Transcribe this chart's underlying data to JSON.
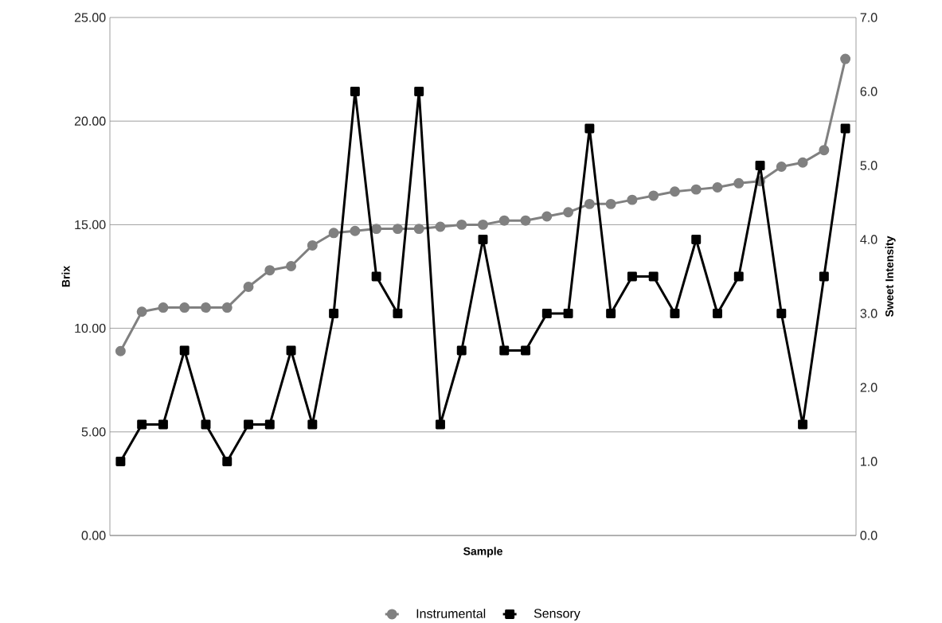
{
  "chart_data": {
    "type": "line",
    "xlabel": "Sample",
    "ylabel": "Brix",
    "y2label": "Sweet Intensity",
    "categories": [
      null,
      null,
      null,
      null,
      null,
      null,
      null,
      null,
      null,
      null,
      null,
      null,
      null,
      null,
      null,
      null,
      null,
      null,
      null,
      null,
      null,
      null,
      null,
      null,
      null,
      null,
      null,
      null,
      null,
      null,
      null,
      null,
      null,
      null,
      null
    ],
    "series": [
      {
        "name": "Instrumental",
        "color": "#808080",
        "marker": "circle",
        "values": [
          8.9,
          10.8,
          11.0,
          11.0,
          11.0,
          11.0,
          12.0,
          12.8,
          13.0,
          14.0,
          14.6,
          14.7,
          14.8,
          14.8,
          14.8,
          14.9,
          15.0,
          15.0,
          15.2,
          15.2,
          15.4,
          15.6,
          16.0,
          16.0,
          16.2,
          16.4,
          16.6,
          16.7,
          16.8,
          17.0,
          17.1,
          17.8,
          18.0,
          18.6,
          23.0
        ]
      },
      {
        "name": "Sensory",
        "color": "#000000",
        "marker": "square",
        "axis": "y2",
        "values": [
          1.0,
          1.5,
          1.5,
          2.5,
          1.5,
          1.0,
          1.5,
          1.5,
          2.5,
          1.5,
          3.0,
          6.0,
          3.5,
          3.0,
          6.0,
          1.5,
          2.5,
          4.0,
          2.5,
          2.5,
          3.0,
          3.0,
          5.5,
          3.0,
          3.5,
          3.5,
          3.0,
          4.0,
          3.0,
          3.5,
          5.0,
          3.0,
          1.5,
          3.5,
          5.5
        ]
      }
    ],
    "ylim": [
      0,
      25
    ],
    "yticks": [
      {
        "value": 0,
        "label": "0.00"
      },
      {
        "value": 5,
        "label": "5.00"
      },
      {
        "value": 10,
        "label": "10.00"
      },
      {
        "value": 15,
        "label": "15.00"
      },
      {
        "value": 20,
        "label": "20.00"
      },
      {
        "value": 25,
        "label": "25.00"
      }
    ],
    "y2lim": [
      0,
      7
    ],
    "y2ticks": [
      {
        "value": 0,
        "label": "0.0"
      },
      {
        "value": 1,
        "label": "1.0"
      },
      {
        "value": 2,
        "label": "2.0"
      },
      {
        "value": 3,
        "label": "3.0"
      },
      {
        "value": 4,
        "label": "4.0"
      },
      {
        "value": 5,
        "label": "5.0"
      },
      {
        "value": 6,
        "label": "6.0"
      },
      {
        "value": 7,
        "label": "7.0"
      }
    ],
    "grid": "y",
    "legend": "bottom",
    "line_style": "solid"
  }
}
